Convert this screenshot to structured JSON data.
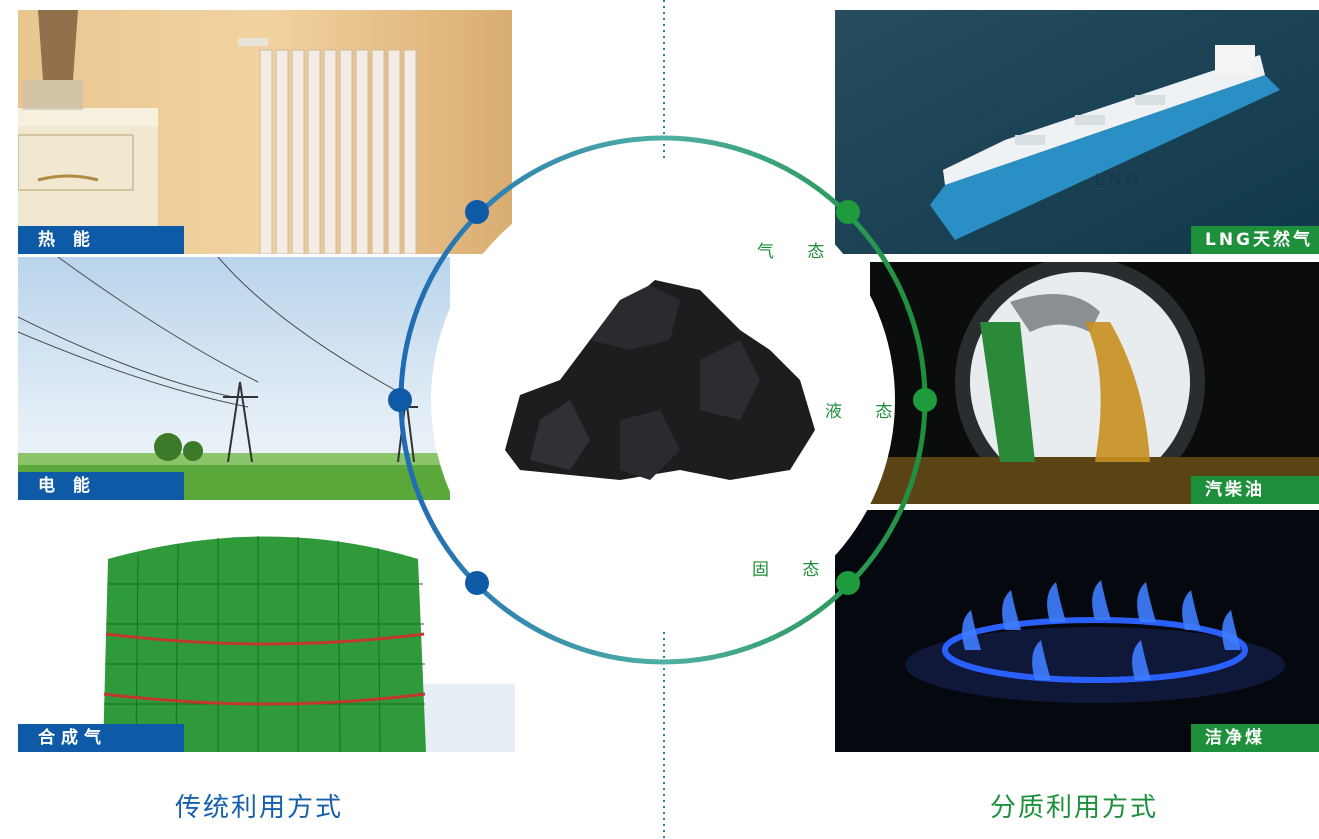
{
  "left_panels": [
    {
      "label": "热 能"
    },
    {
      "label": "电 能"
    },
    {
      "label": "合成气"
    }
  ],
  "right_panels": [
    {
      "label": "LNG天然气"
    },
    {
      "label": "汽柴油"
    },
    {
      "label": "洁净煤"
    }
  ],
  "states": {
    "gas": "气 态",
    "liquid": "液 态",
    "solid": "固 态"
  },
  "captions": {
    "left": "传统利用方式",
    "right": "分质利用方式"
  },
  "colors": {
    "blue": "#0e5aa7",
    "green": "#1e8f3a"
  }
}
